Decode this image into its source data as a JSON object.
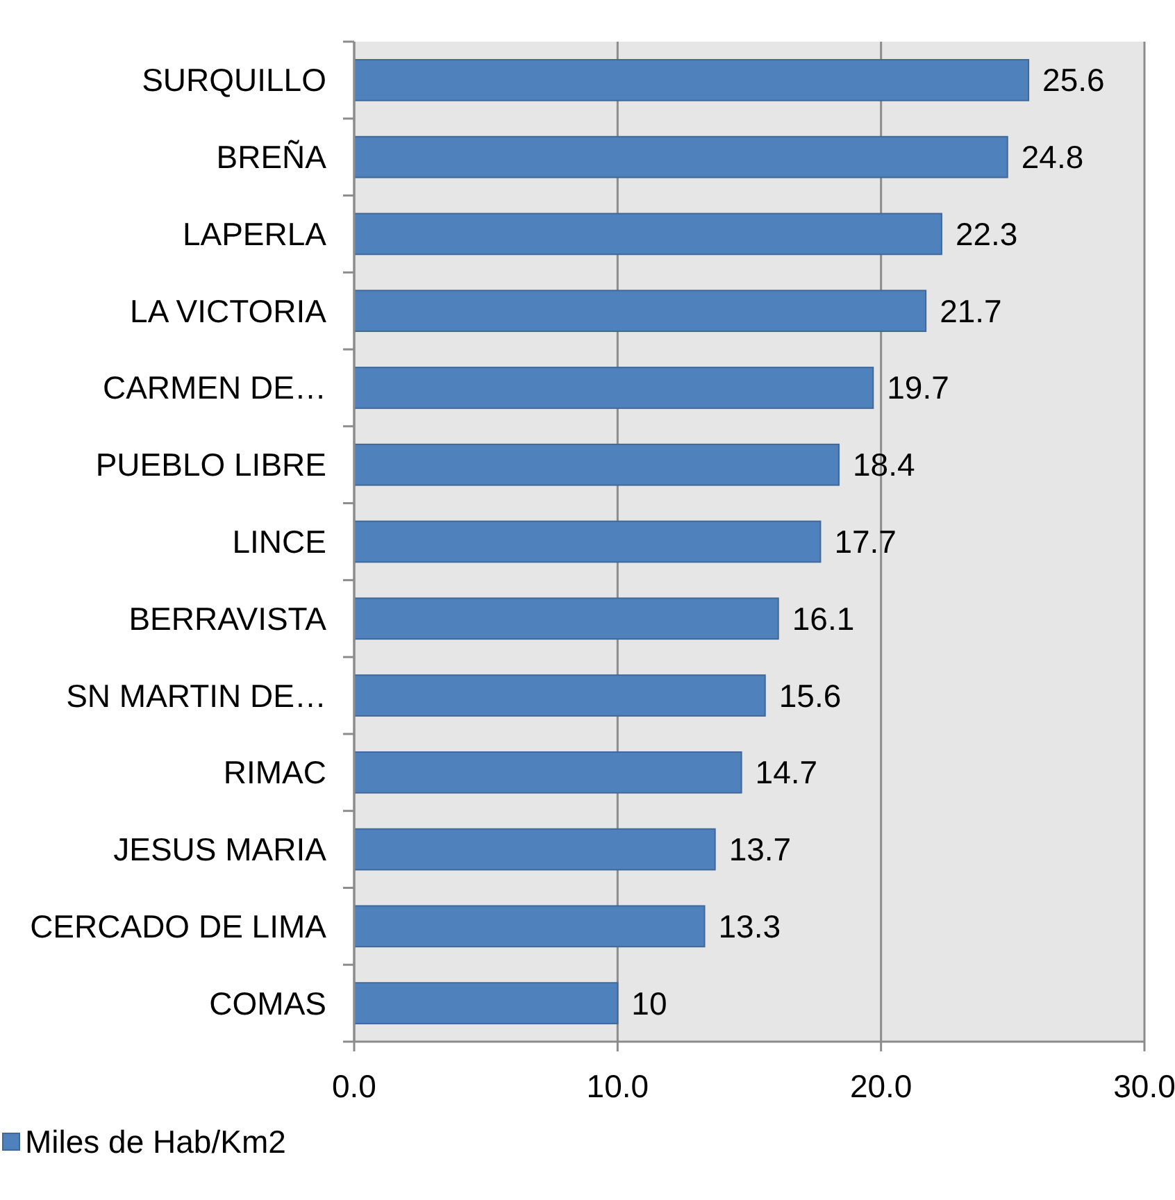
{
  "chart_data": {
    "type": "bar",
    "orientation": "horizontal",
    "categories": [
      "SURQUILLO",
      "BREÑA",
      "LAPERLA",
      "LA VICTORIA",
      "CARMEN DE…",
      "PUEBLO LIBRE",
      "LINCE",
      "BERRAVISTA",
      "SN MARTIN DE…",
      "RIMAC",
      "JESUS MARIA",
      "CERCADO DE LIMA",
      "COMAS"
    ],
    "series": [
      {
        "name": "Miles de Hab/Km2",
        "color": "#4f81bd",
        "values": [
          25.6,
          24.8,
          22.3,
          21.7,
          19.7,
          18.4,
          17.7,
          16.1,
          15.6,
          14.7,
          13.7,
          13.3,
          10
        ]
      }
    ],
    "xlim": [
      0,
      30
    ],
    "xticks": [
      {
        "value": 0,
        "label": "0.0"
      },
      {
        "value": 10,
        "label": "10.0"
      },
      {
        "value": 20,
        "label": "20.0"
      },
      {
        "value": 30,
        "label": "30.0"
      }
    ],
    "grid": "x",
    "legend": "bottom left",
    "data_labels": true
  }
}
